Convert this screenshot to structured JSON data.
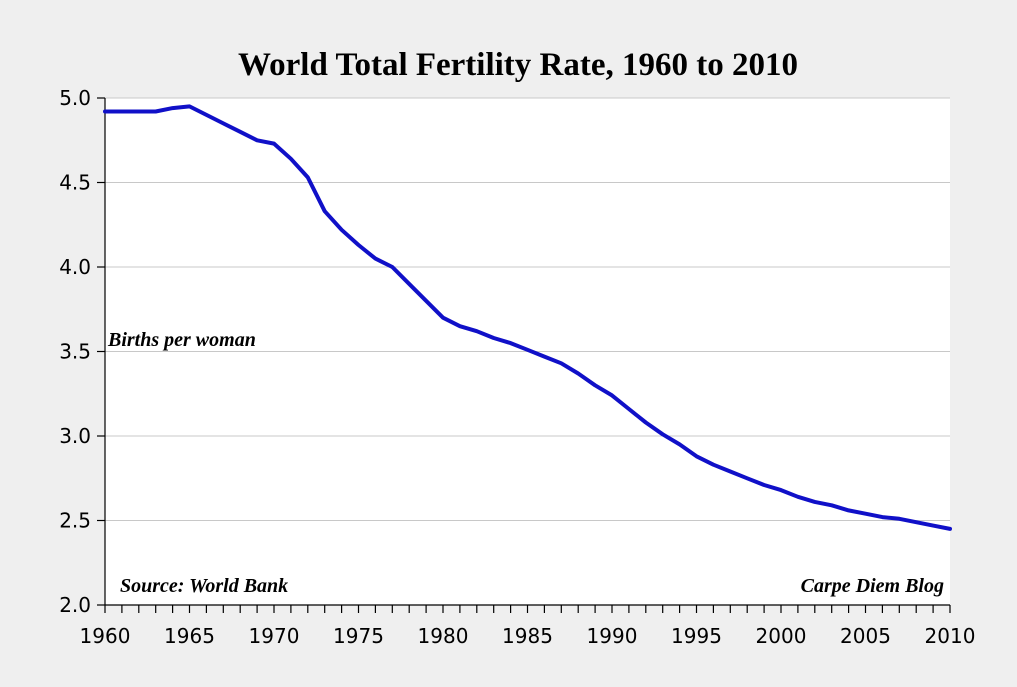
{
  "colors": {
    "background": "#efefef",
    "plot_background": "#ffffff",
    "series": "#1010c8",
    "grid": "#c8c8c8"
  },
  "chart_data": {
    "type": "line",
    "title": "World Total Fertility Rate, 1960 to 2010",
    "xlabel": "",
    "ylabel": "Births per woman",
    "xlim": [
      1960,
      2010
    ],
    "ylim": [
      2.0,
      5.0
    ],
    "yticks": [
      "2.0",
      "2.5",
      "3.0",
      "3.5",
      "4.0",
      "4.5",
      "5.0"
    ],
    "xticks": [
      "1960",
      "1965",
      "1970",
      "1975",
      "1980",
      "1985",
      "1990",
      "1995",
      "2000",
      "2005",
      "2010"
    ],
    "grid": true,
    "annotations": {
      "ylabel_note": "Births per woman",
      "source": "Source: World Bank",
      "credit": "Carpe Diem Blog"
    },
    "series": [
      {
        "name": "World Total Fertility Rate",
        "x": [
          1960,
          1961,
          1962,
          1963,
          1964,
          1965,
          1966,
          1967,
          1968,
          1969,
          1970,
          1971,
          1972,
          1973,
          1974,
          1975,
          1976,
          1977,
          1978,
          1979,
          1980,
          1981,
          1982,
          1983,
          1984,
          1985,
          1986,
          1987,
          1988,
          1989,
          1990,
          1991,
          1992,
          1993,
          1994,
          1995,
          1996,
          1997,
          1998,
          1999,
          2000,
          2001,
          2002,
          2003,
          2004,
          2005,
          2006,
          2007,
          2008,
          2009,
          2010
        ],
        "values": [
          4.92,
          4.92,
          4.92,
          4.92,
          4.94,
          4.95,
          4.9,
          4.85,
          4.8,
          4.75,
          4.73,
          4.64,
          4.53,
          4.33,
          4.22,
          4.13,
          4.05,
          4.0,
          3.9,
          3.8,
          3.7,
          3.65,
          3.62,
          3.58,
          3.55,
          3.51,
          3.47,
          3.43,
          3.37,
          3.3,
          3.24,
          3.16,
          3.08,
          3.01,
          2.95,
          2.88,
          2.83,
          2.79,
          2.75,
          2.71,
          2.68,
          2.64,
          2.61,
          2.59,
          2.56,
          2.54,
          2.52,
          2.51,
          2.49,
          2.47,
          2.45
        ]
      }
    ]
  }
}
